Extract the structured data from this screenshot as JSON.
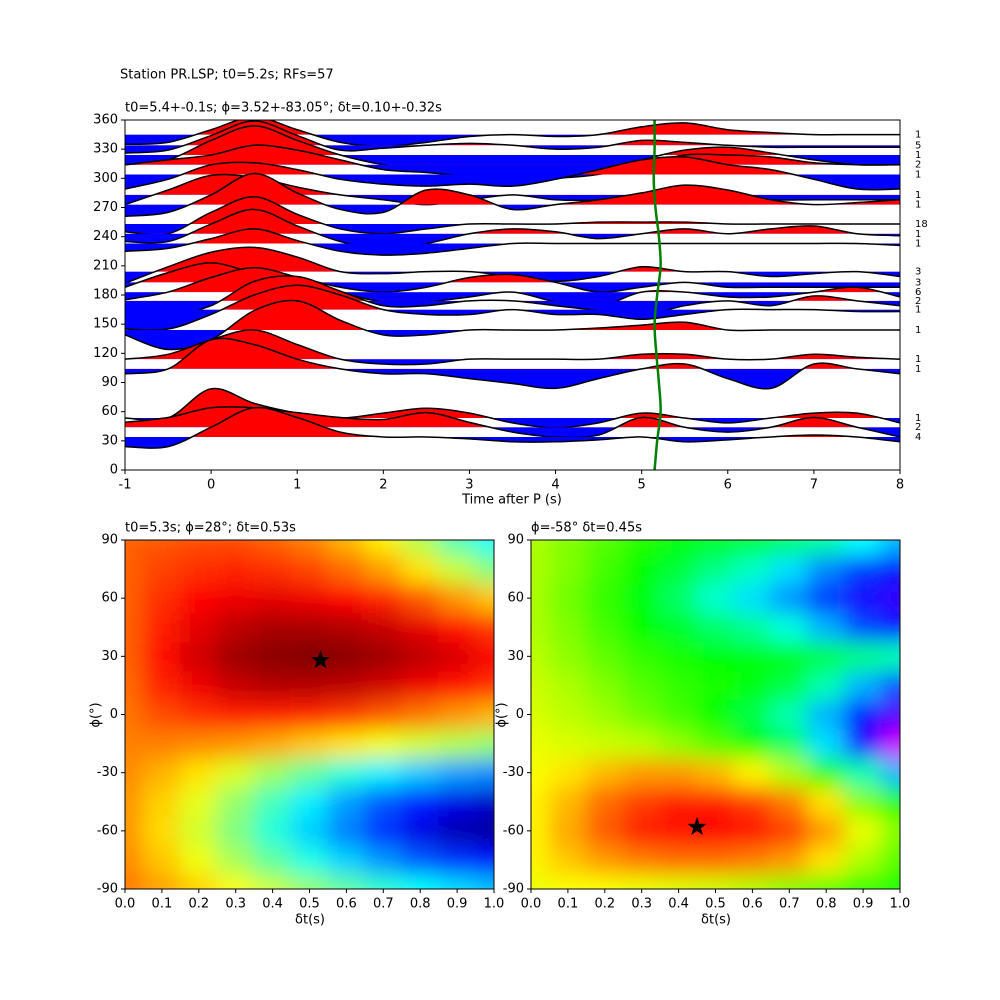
{
  "suptitle": "Station PR.LSP; t0=5.2s; RFs=57",
  "chart_data": [
    {
      "type": "wiggle",
      "title": "t0=5.4+-0.1s; ϕ=3.52+-83.05°; δt=0.10+-0.32s",
      "x_label": "Time after P (s)",
      "xlim": [
        -1,
        8
      ],
      "ylim": [
        0,
        360
      ],
      "xticks": [
        -1,
        0,
        1,
        2,
        3,
        4,
        5,
        6,
        7,
        8
      ],
      "yticks": [
        0,
        30,
        60,
        90,
        120,
        150,
        180,
        210,
        240,
        270,
        300,
        330,
        360
      ],
      "positive_color": "#ff0000",
      "negative_color": "#0000ff",
      "line_color": "#000000",
      "time": [
        -1,
        -0.5,
        0,
        0.5,
        1,
        1.5,
        2,
        2.5,
        3,
        3.5,
        4,
        4.5,
        5,
        5.5,
        6,
        6.5,
        7,
        7.5,
        8
      ],
      "traces": [
        {
          "baz": 345,
          "count": "1",
          "amplitude": [
            -10,
            -8,
            5,
            18,
            5,
            -8,
            -12,
            -8,
            -2,
            0,
            -2,
            0,
            8,
            12,
            5,
            2,
            0,
            0,
            0
          ]
        },
        {
          "baz": 334,
          "count": "5",
          "amplitude": [
            -8,
            -5,
            10,
            25,
            10,
            -5,
            -3,
            0,
            2,
            0,
            -4,
            -2,
            5,
            3,
            0,
            -2,
            -2,
            -2,
            -2
          ]
        },
        {
          "baz": 324,
          "count": "1",
          "amplitude": [
            -10,
            -5,
            15,
            30,
            15,
            0,
            -10,
            -15,
            -20,
            -22,
            -20,
            -15,
            -5,
            5,
            8,
            2,
            -5,
            -10,
            -10
          ]
        },
        {
          "baz": 314,
          "count": "2",
          "amplitude": [
            0,
            5,
            10,
            20,
            15,
            5,
            -5,
            -8,
            -12,
            -15,
            -14,
            -10,
            0,
            10,
            10,
            8,
            2,
            0,
            0
          ]
        },
        {
          "baz": 304,
          "count": "1",
          "amplitude": [
            -15,
            -5,
            10,
            12,
            5,
            -5,
            -10,
            -12,
            -10,
            -12,
            -5,
            5,
            15,
            18,
            10,
            5,
            -5,
            -15,
            -15
          ]
        },
        {
          "baz": 283,
          "count": "1",
          "amplitude": [
            -10,
            5,
            20,
            18,
            8,
            0,
            -5,
            -10,
            -5,
            0,
            -5,
            -5,
            0,
            5,
            0,
            -5,
            -5,
            -5,
            -5
          ]
        },
        {
          "baz": 273,
          "count": "1",
          "amplitude": [
            -12,
            -8,
            10,
            32,
            12,
            -5,
            -8,
            15,
            10,
            -5,
            0,
            5,
            12,
            20,
            15,
            5,
            0,
            2,
            5
          ]
        },
        {
          "baz": 253,
          "count": "18",
          "amplitude": [
            -8,
            -10,
            12,
            28,
            10,
            -5,
            -10,
            -5,
            0,
            0,
            0,
            2,
            2,
            2,
            0,
            0,
            0,
            0,
            0
          ]
        },
        {
          "baz": 243,
          "count": "1",
          "amplitude": [
            -8,
            -8,
            10,
            25,
            8,
            -8,
            -15,
            -10,
            0,
            5,
            2,
            -5,
            0,
            5,
            0,
            5,
            8,
            0,
            -2
          ]
        },
        {
          "baz": 233,
          "count": "1",
          "amplitude": [
            -8,
            -5,
            5,
            15,
            3,
            -8,
            -12,
            -10,
            -5,
            0,
            0,
            0,
            0,
            0,
            0,
            0,
            0,
            0,
            -2
          ]
        },
        {
          "baz": 204,
          "count": "3",
          "amplitude": [
            -12,
            5,
            20,
            25,
            15,
            0,
            -2,
            0,
            0,
            -5,
            -10,
            -5,
            5,
            0,
            0,
            -5,
            -2,
            0,
            -5
          ]
        },
        {
          "baz": 193,
          "count": "3",
          "amplitude": [
            -5,
            10,
            20,
            10,
            5,
            -5,
            -10,
            -5,
            5,
            8,
            0,
            -10,
            -5,
            0,
            -5,
            -5,
            -5,
            -5,
            -5
          ]
        },
        {
          "baz": 183,
          "count": "6",
          "amplitude": [
            -8,
            0,
            15,
            25,
            15,
            0,
            -10,
            -10,
            -5,
            0,
            -10,
            -15,
            0,
            0,
            -5,
            -5,
            0,
            5,
            -5
          ]
        },
        {
          "baz": 174,
          "count": "2",
          "amplitude": [
            -10,
            -15,
            -5,
            20,
            25,
            10,
            -5,
            -5,
            0,
            0,
            -5,
            -10,
            -15,
            -5,
            0,
            -5,
            5,
            0,
            -5
          ]
        },
        {
          "baz": 165,
          "count": "1",
          "amplitude": [
            -20,
            -20,
            -5,
            15,
            25,
            15,
            0,
            -5,
            -5,
            0,
            -5,
            -5,
            -10,
            -5,
            0,
            0,
            0,
            -2,
            -2
          ]
        },
        {
          "baz": 144,
          "count": "1",
          "amplitude": [
            -5,
            -20,
            -10,
            20,
            30,
            10,
            -5,
            -5,
            0,
            0,
            0,
            2,
            5,
            8,
            0,
            0,
            0,
            0,
            0
          ]
        },
        {
          "baz": 114,
          "count": "1",
          "amplitude": [
            0,
            5,
            20,
            30,
            15,
            0,
            -5,
            -5,
            0,
            0,
            0,
            0,
            5,
            5,
            0,
            0,
            5,
            2,
            0
          ]
        },
        {
          "baz": 104,
          "count": "1",
          "amplitude": [
            -5,
            0,
            30,
            25,
            10,
            0,
            -5,
            -5,
            -10,
            -15,
            -20,
            -10,
            0,
            5,
            -10,
            -20,
            5,
            0,
            -5
          ]
        },
        {
          "baz": 53.5,
          "count": "1",
          "amplitude": [
            0,
            0,
            30,
            15,
            5,
            0,
            5,
            10,
            5,
            -5,
            -10,
            -5,
            5,
            0,
            -5,
            0,
            5,
            5,
            -5
          ]
        },
        {
          "baz": 44,
          "count": "2",
          "amplitude": [
            5,
            10,
            20,
            20,
            15,
            10,
            8,
            15,
            5,
            -5,
            -10,
            -8,
            10,
            0,
            -5,
            0,
            10,
            0,
            -10
          ]
        },
        {
          "baz": 34,
          "count": "4",
          "amplitude": [
            -10,
            -10,
            10,
            30,
            20,
            5,
            0,
            0,
            -2,
            -5,
            -5,
            -3,
            0,
            -5,
            -3,
            0,
            2,
            0,
            -5
          ]
        }
      ],
      "t0_curve": {
        "color": "#008000",
        "baz": [
          0,
          30,
          60,
          90,
          120,
          150,
          180,
          210,
          240,
          270,
          300,
          330,
          360
        ],
        "t": [
          5.15,
          5.18,
          5.22,
          5.2,
          5.17,
          5.15,
          5.18,
          5.22,
          5.2,
          5.16,
          5.14,
          5.15,
          5.15
        ]
      }
    },
    {
      "type": "heatmap",
      "title": "t0=5.3s; ϕ=28°; δt=0.53s",
      "x_label": "δt(s)",
      "y_label": "ϕ(°)",
      "colormap": "jet",
      "xlim": [
        0,
        1
      ],
      "ylim": [
        -90,
        90
      ],
      "xticks": [
        {
          "value": 0,
          "label": "0.0"
        },
        0.1,
        0.2,
        0.3,
        0.4,
        0.5,
        0.6,
        0.7,
        0.8,
        0.9,
        {
          "value": 1,
          "label": "1.0"
        }
      ],
      "yticks": [
        -90,
        -60,
        -30,
        0,
        30,
        60,
        90
      ],
      "x": [
        0,
        0.1,
        0.2,
        0.3,
        0.4,
        0.5,
        0.6,
        0.7,
        0.8,
        0.9,
        1
      ],
      "y": [
        -90,
        -75,
        -60,
        -45,
        -30,
        -15,
        0,
        15,
        30,
        45,
        60,
        75,
        90
      ],
      "z": [
        [
          0.76,
          0.72,
          0.67,
          0.62,
          0.57,
          0.52,
          0.47,
          0.42,
          0.38,
          0.34,
          0.31
        ],
        [
          0.74,
          0.68,
          0.61,
          0.54,
          0.47,
          0.4,
          0.33,
          0.27,
          0.21,
          0.17,
          0.14
        ],
        [
          0.73,
          0.66,
          0.58,
          0.5,
          0.41,
          0.33,
          0.25,
          0.17,
          0.1,
          0.05,
          0.03
        ],
        [
          0.73,
          0.67,
          0.6,
          0.52,
          0.44,
          0.36,
          0.28,
          0.21,
          0.15,
          0.1,
          0.07
        ],
        [
          0.74,
          0.7,
          0.65,
          0.59,
          0.53,
          0.47,
          0.41,
          0.36,
          0.32,
          0.28,
          0.26
        ],
        [
          0.75,
          0.75,
          0.74,
          0.73,
          0.71,
          0.68,
          0.65,
          0.61,
          0.58,
          0.55,
          0.52
        ],
        [
          0.76,
          0.8,
          0.83,
          0.85,
          0.85,
          0.84,
          0.82,
          0.79,
          0.76,
          0.73,
          0.7
        ],
        [
          0.77,
          0.84,
          0.89,
          0.93,
          0.95,
          0.95,
          0.94,
          0.92,
          0.89,
          0.86,
          0.83
        ],
        [
          0.78,
          0.86,
          0.92,
          0.97,
          0.99,
          1.0,
          0.99,
          0.97,
          0.94,
          0.91,
          0.88
        ],
        [
          0.78,
          0.85,
          0.9,
          0.94,
          0.96,
          0.96,
          0.95,
          0.93,
          0.9,
          0.86,
          0.82
        ],
        [
          0.78,
          0.83,
          0.87,
          0.89,
          0.9,
          0.89,
          0.87,
          0.84,
          0.79,
          0.73,
          0.68
        ],
        [
          0.78,
          0.81,
          0.83,
          0.84,
          0.83,
          0.81,
          0.77,
          0.72,
          0.65,
          0.57,
          0.5
        ],
        [
          0.78,
          0.79,
          0.8,
          0.8,
          0.78,
          0.75,
          0.7,
          0.64,
          0.55,
          0.45,
          0.38
        ]
      ],
      "star": {
        "x": 0.53,
        "y": 28
      }
    },
    {
      "type": "heatmap",
      "title": "ϕ=-58° δt=0.45s",
      "x_label": "δt(s)",
      "y_label": "ϕ(°)",
      "colormap": "hsv",
      "xlim": [
        0,
        1
      ],
      "ylim": [
        -90,
        90
      ],
      "xticks": [
        {
          "value": 0,
          "label": "0.0"
        },
        0.1,
        0.2,
        0.3,
        0.4,
        0.5,
        0.6,
        0.7,
        0.8,
        0.9,
        {
          "value": 1,
          "label": "1.0"
        }
      ],
      "yticks": [
        -90,
        -60,
        -30,
        0,
        30,
        60,
        90
      ],
      "x": [
        0,
        0.1,
        0.2,
        0.3,
        0.4,
        0.5,
        0.6,
        0.7,
        0.8,
        0.9,
        1
      ],
      "y": [
        -90,
        -75,
        -60,
        -45,
        -30,
        -15,
        0,
        15,
        30,
        45,
        60,
        75,
        90
      ],
      "z": [
        [
          0.18,
          0.17,
          0.17,
          0.18,
          0.19,
          0.2,
          0.22,
          0.25,
          0.28,
          0.31,
          0.33
        ],
        [
          0.16,
          0.13,
          0.1,
          0.08,
          0.07,
          0.07,
          0.08,
          0.1,
          0.15,
          0.22,
          0.28
        ],
        [
          0.16,
          0.11,
          0.06,
          0.02,
          0.005,
          0.0,
          0.01,
          0.04,
          0.1,
          0.18,
          0.25
        ],
        [
          0.16,
          0.12,
          0.07,
          0.04,
          0.02,
          0.02,
          0.04,
          0.08,
          0.15,
          0.25,
          0.32
        ],
        [
          0.17,
          0.15,
          0.12,
          0.1,
          0.1,
          0.12,
          0.16,
          0.22,
          0.32,
          0.45,
          0.55
        ],
        [
          0.18,
          0.19,
          0.2,
          0.21,
          0.24,
          0.28,
          0.33,
          0.4,
          0.52,
          0.68,
          0.8
        ],
        [
          0.19,
          0.21,
          0.23,
          0.26,
          0.29,
          0.33,
          0.38,
          0.45,
          0.55,
          0.66,
          0.72
        ],
        [
          0.2,
          0.22,
          0.25,
          0.28,
          0.3,
          0.32,
          0.34,
          0.38,
          0.45,
          0.55,
          0.62
        ],
        [
          0.21,
          0.24,
          0.27,
          0.3,
          0.32,
          0.33,
          0.34,
          0.35,
          0.38,
          0.42,
          0.45
        ],
        [
          0.22,
          0.25,
          0.29,
          0.33,
          0.36,
          0.4,
          0.43,
          0.48,
          0.55,
          0.62,
          0.66
        ],
        [
          0.22,
          0.26,
          0.3,
          0.34,
          0.4,
          0.47,
          0.52,
          0.57,
          0.63,
          0.68,
          0.7
        ],
        [
          0.22,
          0.25,
          0.29,
          0.33,
          0.37,
          0.42,
          0.46,
          0.52,
          0.58,
          0.63,
          0.66
        ],
        [
          0.22,
          0.25,
          0.28,
          0.31,
          0.33,
          0.35,
          0.37,
          0.4,
          0.44,
          0.5,
          0.55
        ]
      ],
      "star": {
        "x": 0.45,
        "y": -58
      }
    }
  ]
}
